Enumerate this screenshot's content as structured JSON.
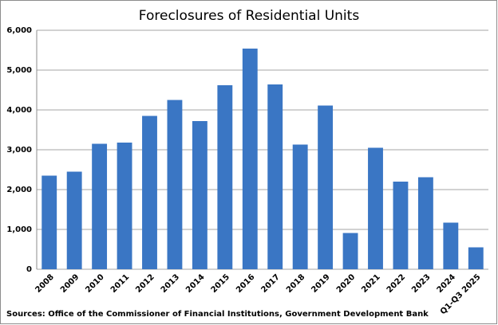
{
  "chart_data": {
    "type": "bar",
    "title": "Foreclosures of Residential Units",
    "categories": [
      "2008",
      "2009",
      "2010",
      "2011",
      "2012",
      "2013",
      "2014",
      "2015",
      "2016",
      "2017",
      "2018",
      "2019",
      "2020",
      "2021",
      "2022",
      "2023",
      "2024",
      "Q1-Q3 2025"
    ],
    "values": [
      2350,
      2450,
      3150,
      3180,
      3850,
      4250,
      3720,
      4620,
      5540,
      4640,
      3130,
      4110,
      910,
      3050,
      2200,
      2310,
      1170,
      550
    ],
    "color": "#3a76c4",
    "ylim": [
      0,
      6000
    ],
    "yticks": [
      0,
      {
        "value": 1000,
        "label": "1,000"
      },
      {
        "value": 2000,
        "label": "2,000"
      },
      {
        "value": 3000,
        "label": "3,000"
      },
      {
        "value": 4000,
        "label": "4,000"
      },
      {
        "value": 5000,
        "label": "5,000"
      },
      {
        "value": 6000,
        "label": "6,000"
      }
    ],
    "grid": true,
    "source": "Sources: Office of the Commissioner of Financial Institutions, Government Development Bank"
  }
}
